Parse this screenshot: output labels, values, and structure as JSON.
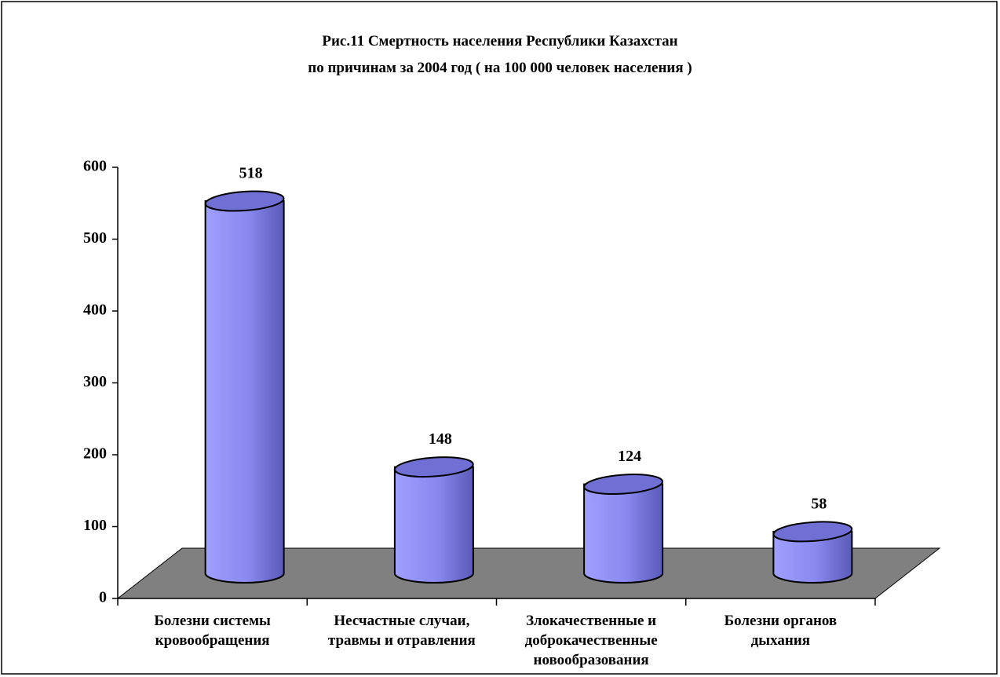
{
  "chart_data": {
    "type": "cylinder_bar",
    "title": "Рис.11 Смертность населения  Республики  Казахстан\nпо причинам  за 2004 год ( на 100 000 человек  населения )",
    "categories": [
      "Болезни системы\nкровообращения",
      "Несчастные случаи,\nтравмы и отравления",
      "Злокачественные и\nдоброкачественные\nновообразования",
      "Болезни органов\nдыхания"
    ],
    "values": [
      518,
      148,
      124,
      58
    ],
    "color": "#9999ff",
    "floor_color": "#808080",
    "ylim": [
      0,
      600
    ],
    "yticks": [
      0,
      100,
      200,
      300,
      400,
      500,
      600
    ]
  }
}
